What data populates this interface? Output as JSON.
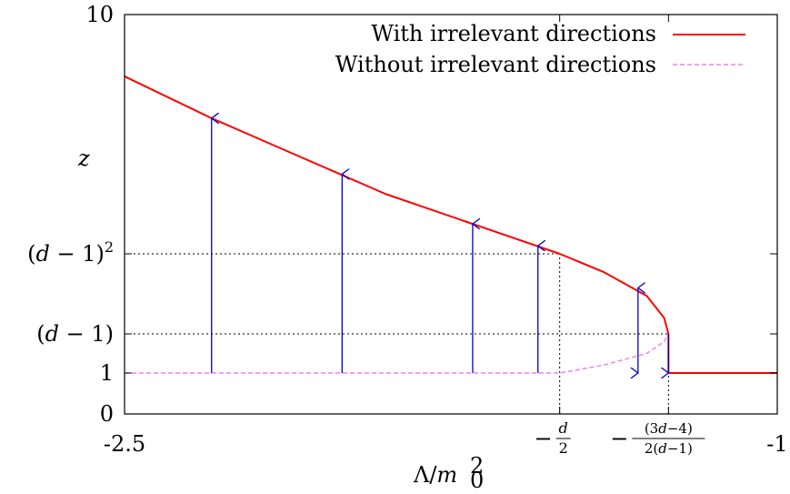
{
  "chart_data": {
    "type": "line",
    "xlabel": "Λ/m₀²",
    "ylabel": "z",
    "xlim": [
      -2.5,
      -1
    ],
    "ylim": [
      0,
      10
    ],
    "x_ticks": [
      {
        "value": -2.5,
        "label": "-2.5"
      },
      {
        "value": -1.5,
        "label": "-d/2"
      },
      {
        "value": -1.25,
        "label": "-(3d-4)/(2(d-1))"
      },
      {
        "value": -1,
        "label": "-1"
      }
    ],
    "y_ticks": [
      {
        "value": 0,
        "label": "0"
      },
      {
        "value": 1,
        "label": "1"
      },
      {
        "value": 2,
        "label": "(d-1)"
      },
      {
        "value": 4,
        "label": "(d-1)^2"
      },
      {
        "value": 10,
        "label": "10"
      }
    ],
    "series": [
      {
        "name": "With irrelevant directions",
        "color": "#ff0000",
        "style": "solid",
        "points": [
          [
            -2.5,
            8.45
          ],
          [
            -2.3,
            7.4
          ],
          [
            -2.1,
            6.45
          ],
          [
            -1.9,
            5.5
          ],
          [
            -1.7,
            4.75
          ],
          [
            -1.5,
            4.0
          ],
          [
            -1.4,
            3.55
          ],
          [
            -1.3,
            2.95
          ],
          [
            -1.26,
            2.4
          ],
          [
            -1.25,
            2.0
          ],
          [
            -1.25,
            1.0
          ],
          [
            -1.0,
            1.0
          ]
        ]
      },
      {
        "name": "Without irrelevant directions",
        "color": "#ee82ee",
        "style": "dashed",
        "points": [
          [
            -2.5,
            1.0
          ],
          [
            -1.5,
            1.0
          ],
          [
            -1.4,
            1.2
          ],
          [
            -1.3,
            1.5
          ],
          [
            -1.26,
            1.8
          ],
          [
            -1.25,
            2.0
          ]
        ]
      }
    ],
    "arrows": {
      "color": "#0000cc",
      "items": [
        {
          "x": -2.3,
          "from": 1.0,
          "to": 7.4
        },
        {
          "x": -2.0,
          "from": 1.0,
          "to": 6.0
        },
        {
          "x": -1.7,
          "from": 1.0,
          "to": 4.75
        },
        {
          "x": -1.55,
          "from": 1.0,
          "to": 4.2
        },
        {
          "x": -1.32,
          "from": 1.0,
          "to": 3.15,
          "double": true
        },
        {
          "x": -1.25,
          "from": 2.0,
          "to": 1.0
        }
      ]
    },
    "reference_lines": [
      {
        "axis": "y",
        "value": 4,
        "to_x": -1.5
      },
      {
        "axis": "y",
        "value": 2,
        "to_x": -1.25
      },
      {
        "axis": "x",
        "value": -1.5,
        "to_y": 4
      },
      {
        "axis": "x",
        "value": -1.25,
        "to_y": 2
      }
    ],
    "legend_position": "top-right",
    "grid": false
  }
}
